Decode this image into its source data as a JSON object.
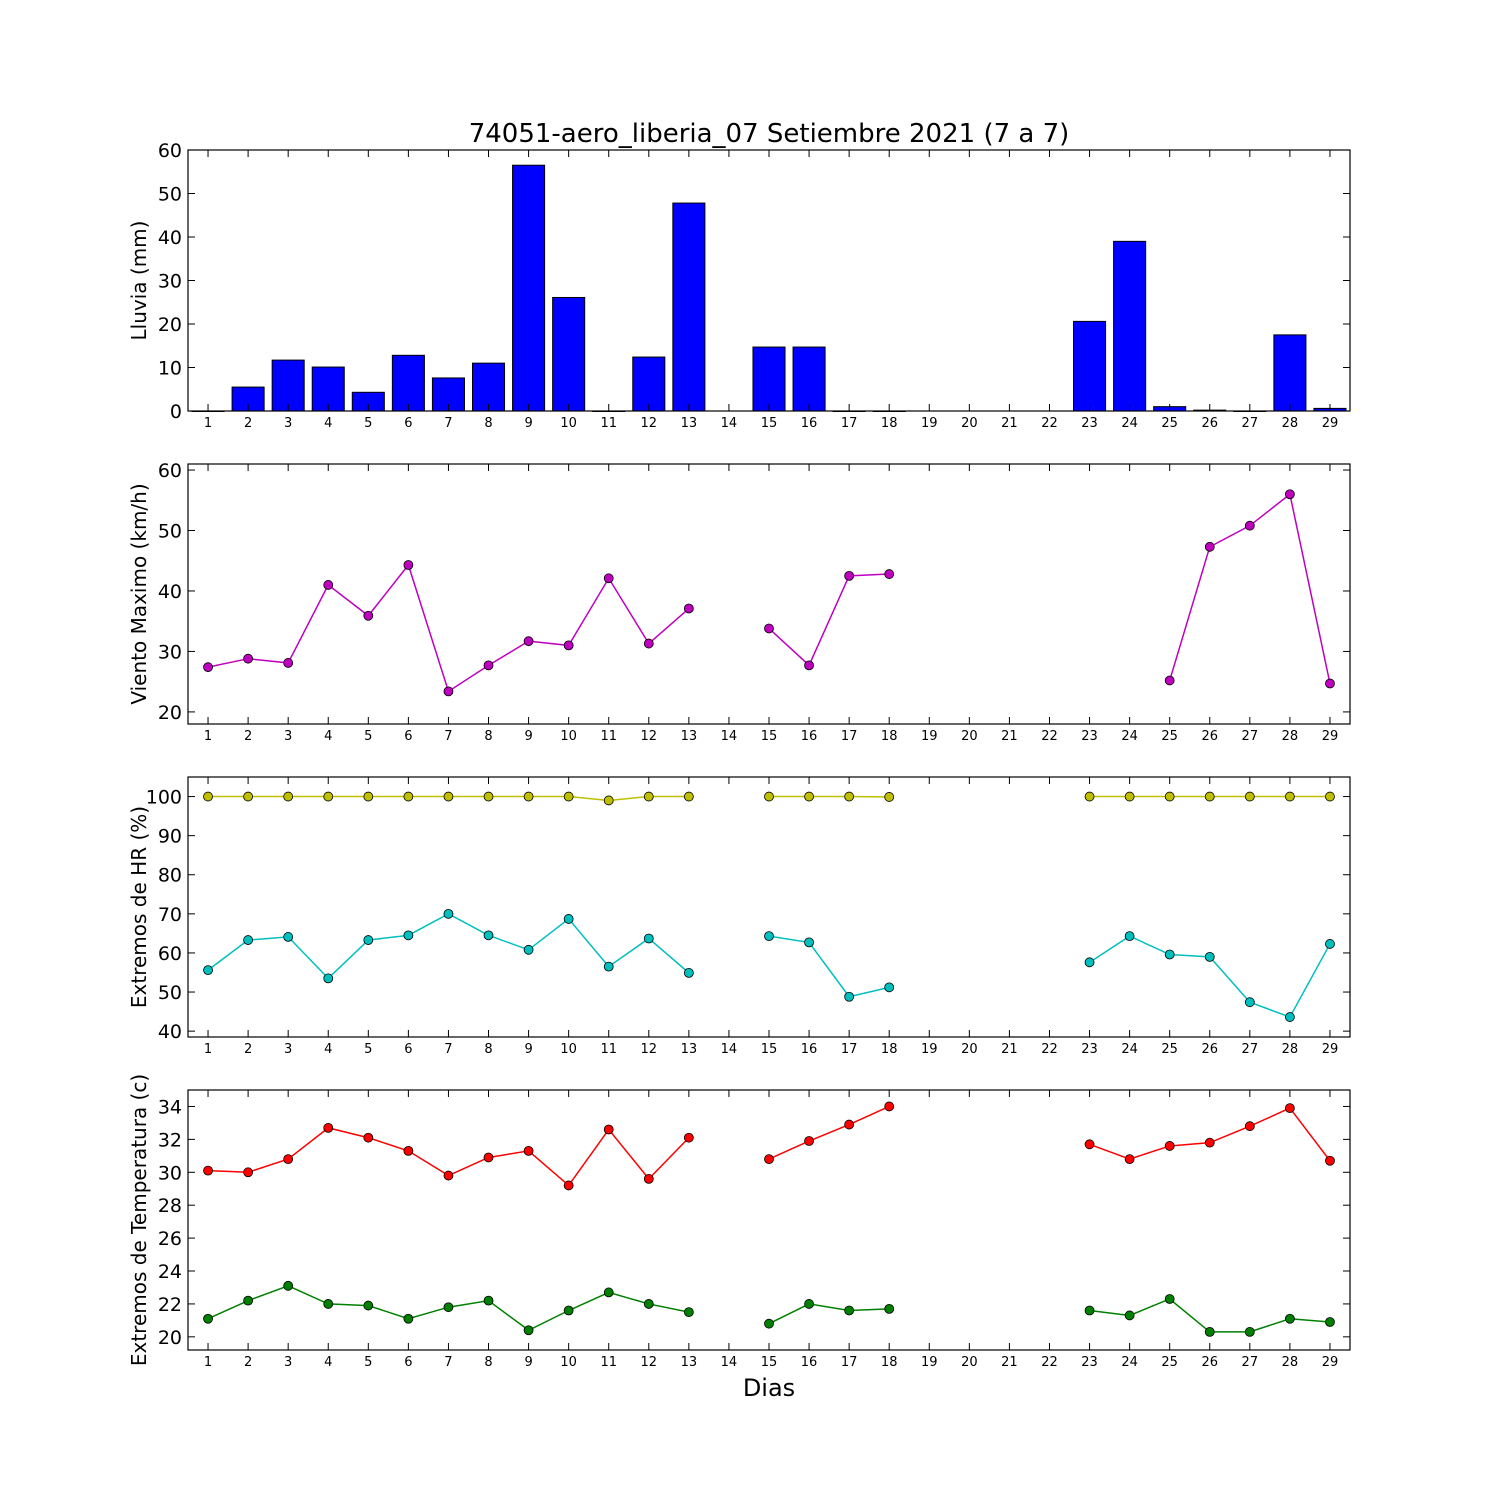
{
  "title": "74051-aero_liberia_07 Setiembre 2021  (7 a 7)",
  "xlabel": "Dias",
  "colors": {
    "rain": "#0000ff",
    "wind": "#bf00bf",
    "hr_max": "#bfbf00",
    "hr_min": "#00bfbf",
    "temp_max": "#ff0000",
    "temp_min": "#008000"
  },
  "chart_data": [
    {
      "type": "bar",
      "ylabel": "Lluvia (mm)",
      "ylim": [
        0,
        60
      ],
      "yticks": [
        0,
        10,
        20,
        30,
        40,
        50,
        60
      ],
      "categories": [
        "1",
        "2",
        "3",
        "4",
        "5",
        "6",
        "7",
        "8",
        "9",
        "10",
        "11",
        "12",
        "13",
        "14",
        "15",
        "16",
        "17",
        "18",
        "19",
        "20",
        "21",
        "22",
        "23",
        "24",
        "25",
        "26",
        "27",
        "28",
        "29"
      ],
      "values": [
        0.0,
        5.5,
        11.7,
        10.1,
        4.3,
        12.8,
        7.6,
        11.0,
        56.5,
        26.1,
        0.0,
        12.4,
        47.8,
        null,
        14.7,
        14.7,
        0.0,
        0.0,
        null,
        null,
        null,
        null,
        20.6,
        39.0,
        1.0,
        0.2,
        0.0,
        17.5,
        0.6
      ],
      "series_color_key": "rain"
    },
    {
      "type": "line",
      "ylabel": "Viento Maximo (km/h)",
      "ylim": [
        18,
        61
      ],
      "yticks": [
        20,
        30,
        40,
        50,
        60
      ],
      "categories": [
        "1",
        "2",
        "3",
        "4",
        "5",
        "6",
        "7",
        "8",
        "9",
        "10",
        "11",
        "12",
        "13",
        "14",
        "15",
        "16",
        "17",
        "18",
        "19",
        "20",
        "21",
        "22",
        "23",
        "24",
        "25",
        "26",
        "27",
        "28",
        "29"
      ],
      "series": [
        {
          "color_key": "wind",
          "values": [
            27.4,
            28.8,
            28.1,
            41.0,
            35.9,
            44.3,
            23.4,
            27.7,
            31.7,
            31.0,
            42.1,
            31.3,
            37.1,
            null,
            33.8,
            27.7,
            42.5,
            42.8,
            null,
            null,
            null,
            null,
            null,
            null,
            25.2,
            47.3,
            50.8,
            56.0,
            24.7
          ]
        }
      ]
    },
    {
      "type": "line",
      "ylabel": "Extremos de HR (%)",
      "ylim": [
        38.5,
        105
      ],
      "yticks": [
        40,
        50,
        60,
        70,
        80,
        90,
        100
      ],
      "categories": [
        "1",
        "2",
        "3",
        "4",
        "5",
        "6",
        "7",
        "8",
        "9",
        "10",
        "11",
        "12",
        "13",
        "14",
        "15",
        "16",
        "17",
        "18",
        "19",
        "20",
        "21",
        "22",
        "23",
        "24",
        "25",
        "26",
        "27",
        "28",
        "29"
      ],
      "series": [
        {
          "color_key": "hr_max",
          "values": [
            100,
            100,
            100,
            100,
            100,
            100,
            100,
            100,
            100,
            100,
            99,
            100,
            100,
            null,
            100,
            100,
            100,
            99.9,
            null,
            null,
            null,
            null,
            100,
            100,
            100,
            100,
            100,
            100,
            100
          ]
        },
        {
          "color_key": "hr_min",
          "values": [
            55.6,
            63.3,
            64.1,
            53.5,
            63.3,
            64.5,
            70.0,
            64.5,
            60.8,
            68.7,
            56.5,
            63.7,
            54.9,
            null,
            64.3,
            62.7,
            48.8,
            51.2,
            null,
            null,
            null,
            null,
            57.6,
            64.3,
            59.6,
            59.0,
            47.4,
            43.6,
            62.3
          ]
        }
      ]
    },
    {
      "type": "line",
      "ylabel": "Extremos de Temperatura (c)",
      "ylim": [
        19.2,
        35.0
      ],
      "yticks": [
        20,
        22,
        24,
        26,
        28,
        30,
        32,
        34
      ],
      "categories": [
        "1",
        "2",
        "3",
        "4",
        "5",
        "6",
        "7",
        "8",
        "9",
        "10",
        "11",
        "12",
        "13",
        "14",
        "15",
        "16",
        "17",
        "18",
        "19",
        "20",
        "21",
        "22",
        "23",
        "24",
        "25",
        "26",
        "27",
        "28",
        "29"
      ],
      "series": [
        {
          "color_key": "temp_max",
          "values": [
            30.1,
            30.0,
            30.8,
            32.7,
            32.1,
            31.3,
            29.8,
            30.9,
            31.3,
            29.2,
            32.6,
            29.6,
            32.1,
            null,
            30.8,
            31.9,
            32.9,
            34.0,
            null,
            null,
            null,
            null,
            31.7,
            30.8,
            31.6,
            31.8,
            32.8,
            33.9,
            30.7
          ]
        },
        {
          "color_key": "temp_min",
          "values": [
            21.1,
            22.2,
            23.1,
            22.0,
            21.9,
            21.1,
            21.8,
            22.2,
            20.4,
            21.6,
            22.7,
            22.0,
            21.5,
            null,
            20.8,
            22.0,
            21.6,
            21.7,
            null,
            null,
            null,
            null,
            21.6,
            21.3,
            22.3,
            20.3,
            20.3,
            21.1,
            20.9
          ]
        }
      ]
    }
  ]
}
